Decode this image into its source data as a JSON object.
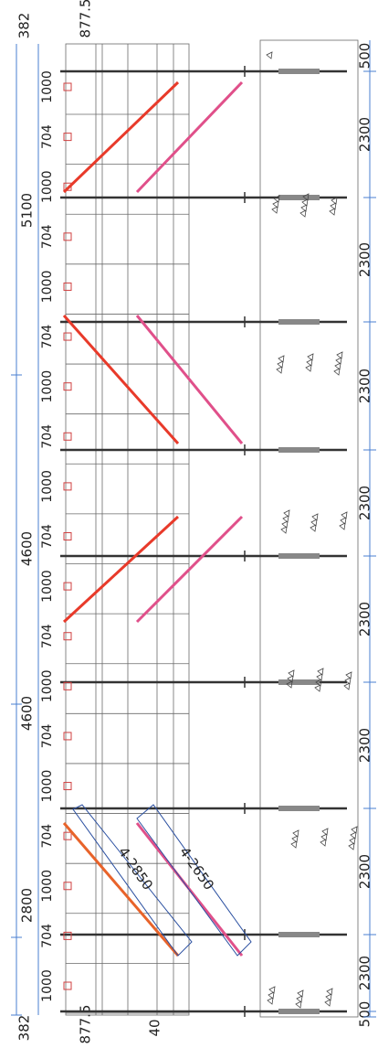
{
  "overall_dims": {
    "top_end": "382",
    "top_offset": "877.5",
    "segments": [
      "5100",
      "4600",
      "4600",
      "2800"
    ],
    "bottom_end": "382",
    "bottom_offset": "877.5",
    "bottom_gap": "40"
  },
  "spacing_dims": [
    "1000",
    "704",
    "1000",
    "704",
    "1000",
    "704",
    "1000",
    "704",
    "1000",
    "704",
    "1000",
    "704",
    "1000",
    "704",
    "1000",
    "704",
    "1000",
    "704",
    "1000"
  ],
  "pile_dims": [
    "500",
    "2300",
    "2300",
    "2300",
    "2300",
    "2300",
    "2300",
    "2300",
    "2300",
    "500"
  ],
  "brace_labels": [
    "4-2850",
    "4-2650"
  ]
}
